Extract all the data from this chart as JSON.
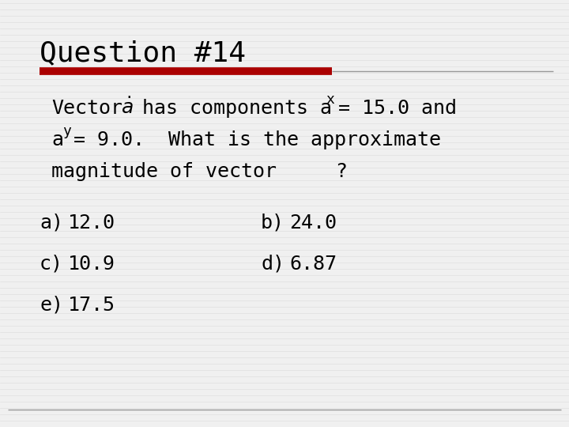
{
  "title": "Question #14",
  "title_fontsize": 26,
  "title_color": "#000000",
  "separator_thick_color": "#aa0000",
  "separator_thin_color": "#999999",
  "body_fontsize": 18,
  "choice_fontsize": 18,
  "background_color": "#f0f0f0",
  "line_color": "#cccccc",
  "choices": [
    {
      "label": "a)",
      "value": "12.0",
      "col": 0
    },
    {
      "label": "b)",
      "value": "24.0",
      "col": 1
    },
    {
      "label": "c)",
      "value": "10.9",
      "col": 0
    },
    {
      "label": "d)",
      "value": "6.87",
      "col": 1
    },
    {
      "label": "e)",
      "value": "17.5",
      "col": 0
    }
  ]
}
